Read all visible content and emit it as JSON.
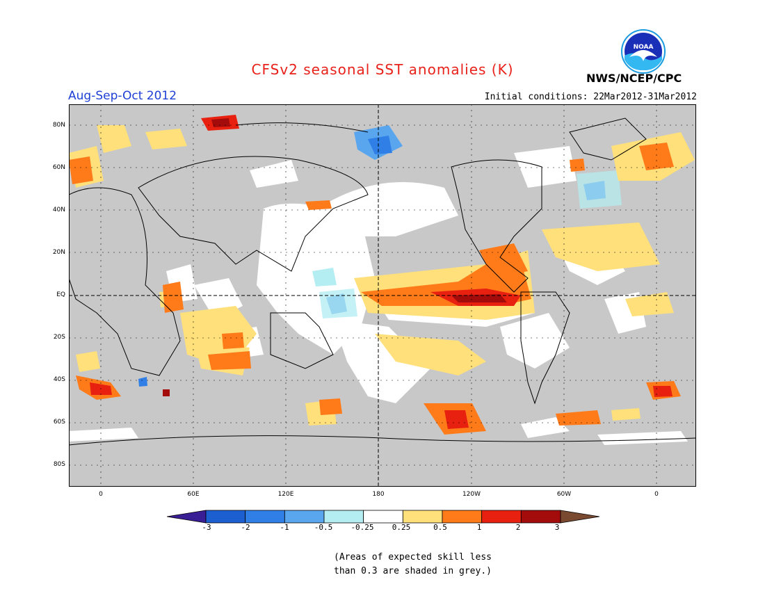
{
  "header": {
    "title": "CFSv2 seasonal SST anomalies (K)",
    "season": "Aug-Sep-Oct 2012",
    "initial_conditions": "Initial conditions: 22Mar2012-31Mar2012",
    "agency": "NWS/NCEP/CPC",
    "logo_text": "NOAA"
  },
  "map": {
    "lat_labels": [
      "80N",
      "60N",
      "40N",
      "20N",
      "EQ",
      "20S",
      "40S",
      "60S",
      "80S"
    ],
    "lon_labels": [
      "0",
      "60E",
      "120E",
      "180",
      "120W",
      "60W",
      "0"
    ],
    "land_color": "#c8c8c8",
    "ocean_color": "#ffffff"
  },
  "colorbar": {
    "labels": [
      "-3",
      "-2",
      "-1",
      "-0.5",
      "-0.25",
      "0.25",
      "0.5",
      "1",
      "2",
      "3"
    ],
    "colors": [
      "#3a1e96",
      "#1c5fd0",
      "#2f7fe6",
      "#5aa6ee",
      "#b4eef2",
      "#ffffff",
      "#ffe07a",
      "#ff7a18",
      "#e82010",
      "#a40c0c",
      "#7a4a30"
    ]
  },
  "note": {
    "line1": "(Areas of expected skill less",
    "line2": "than 0.3 are shaded in grey.)"
  }
}
